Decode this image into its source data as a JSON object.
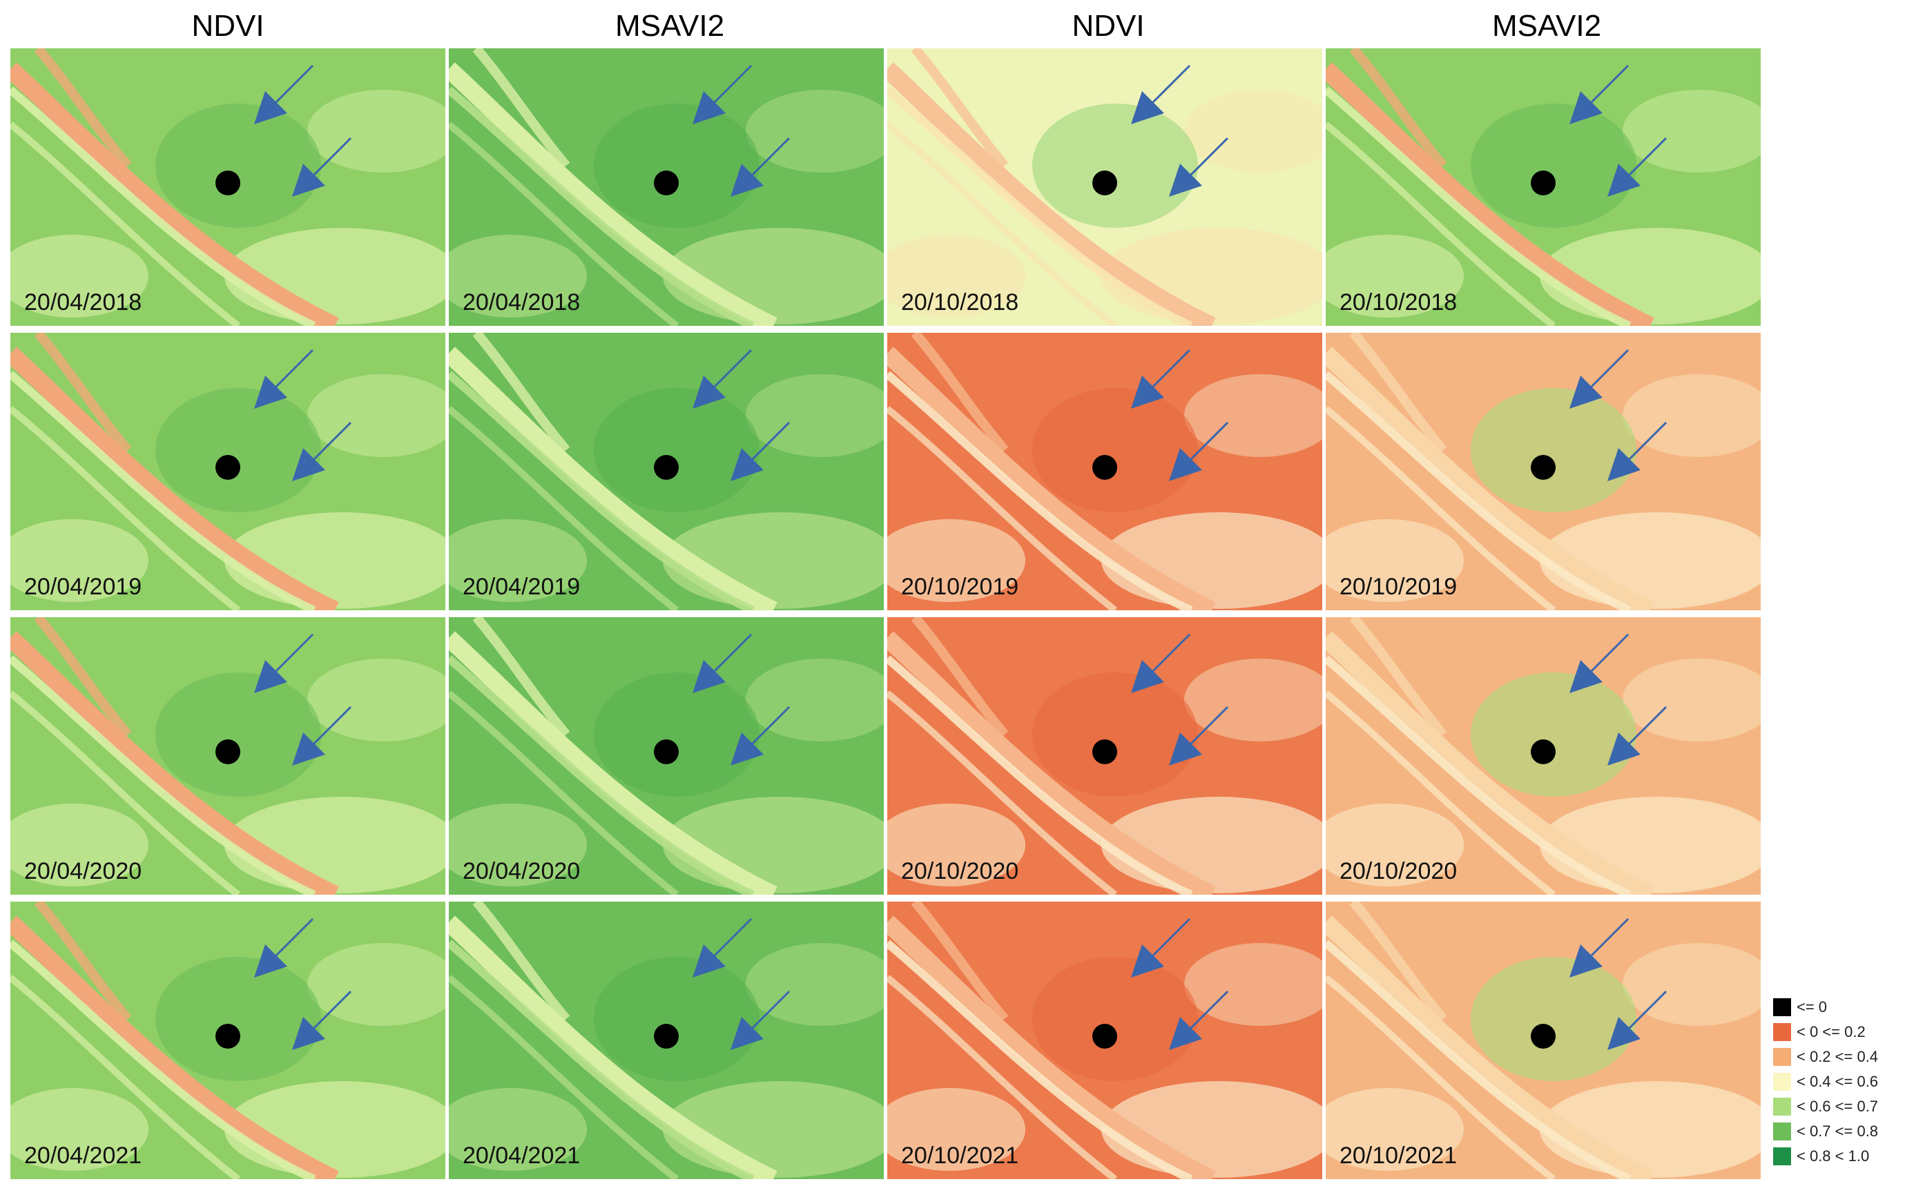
{
  "headers": [
    "NDVI",
    "MSAVI2",
    "NDVI",
    "MSAVI2"
  ],
  "panels": [
    {
      "date": "20/04/2018",
      "index": "NDVI",
      "scheme": "green"
    },
    {
      "date": "20/04/2018",
      "index": "MSAVI2",
      "scheme": "green-dark"
    },
    {
      "date": "20/10/2018",
      "index": "NDVI",
      "scheme": "pale-green"
    },
    {
      "date": "20/10/2018",
      "index": "MSAVI2",
      "scheme": "green"
    },
    {
      "date": "20/04/2019",
      "index": "NDVI",
      "scheme": "green"
    },
    {
      "date": "20/04/2019",
      "index": "MSAVI2",
      "scheme": "green-dark"
    },
    {
      "date": "20/10/2019",
      "index": "NDVI",
      "scheme": "red"
    },
    {
      "date": "20/10/2019",
      "index": "MSAVI2",
      "scheme": "orange"
    },
    {
      "date": "20/04/2020",
      "index": "NDVI",
      "scheme": "green"
    },
    {
      "date": "20/04/2020",
      "index": "MSAVI2",
      "scheme": "green-dark"
    },
    {
      "date": "20/10/2020",
      "index": "NDVI",
      "scheme": "red"
    },
    {
      "date": "20/10/2020",
      "index": "MSAVI2",
      "scheme": "orange"
    },
    {
      "date": "20/04/2021",
      "index": "NDVI",
      "scheme": "green"
    },
    {
      "date": "20/04/2021",
      "index": "MSAVI2",
      "scheme": "green-dark"
    },
    {
      "date": "20/10/2021",
      "index": "NDVI",
      "scheme": "red"
    },
    {
      "date": "20/10/2021",
      "index": "MSAVI2",
      "scheme": "orange"
    }
  ],
  "legend": [
    {
      "label": "<= 0",
      "color": "#000000"
    },
    {
      "label": "< 0 <= 0.2",
      "color": "#e9683e"
    },
    {
      "label": "< 0.2 <= 0.4",
      "color": "#f5ad74"
    },
    {
      "label": "< 0.4 <= 0.6",
      "color": "#fbf6c2"
    },
    {
      "label": "< 0.6 <= 0.7",
      "color": "#a9dc7b"
    },
    {
      "label": "< 0.7 <= 0.8",
      "color": "#6dbd59"
    },
    {
      "label": "< 0.8 < 1.0",
      "color": "#1e9148"
    }
  ],
  "schemes": {
    "green": {
      "bg": "#8fcf66",
      "band": "#f2a77a",
      "light": "#d9efa6",
      "dark": "#6dbd59"
    },
    "green-dark": {
      "bg": "#6dbd59",
      "band": "#d9efa6",
      "light": "#b6e08a",
      "dark": "#5ab052"
    },
    "pale-green": {
      "bg": "#eef3b8",
      "band": "#f7c296",
      "light": "#f8e6b0",
      "dark": "#9fd77c"
    },
    "red": {
      "bg": "#ec7a4d",
      "band": "#f6b58a",
      "light": "#fbe7c4",
      "dark": "#e8693f"
    },
    "orange": {
      "bg": "#f5b582",
      "band": "#f9d6a8",
      "light": "#fbe9c4",
      "dark": "#a9dc7b"
    }
  },
  "colors": {
    "arrow": "#3a66ad",
    "marker": "#000000"
  }
}
